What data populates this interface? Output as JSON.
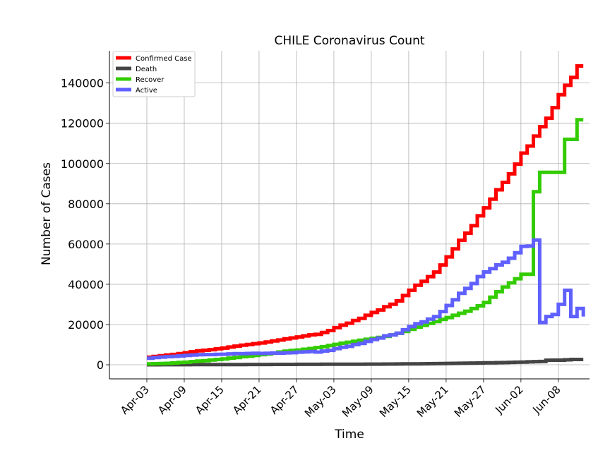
{
  "chart_data": {
    "type": "line",
    "title": "CHILE Coronavirus Count",
    "xlabel": "Time",
    "ylabel": "Number of Cases",
    "x_start": "2020-04-03",
    "xlim": [
      "2020-03-28",
      "2020-06-13"
    ],
    "ylim": [
      -7000,
      156000
    ],
    "grid": true,
    "legend_position": "top-left",
    "x_ticks": [
      {
        "date": "2020-04-03",
        "label": "Apr-03"
      },
      {
        "date": "2020-04-09",
        "label": "Apr-09"
      },
      {
        "date": "2020-04-15",
        "label": "Apr-15"
      },
      {
        "date": "2020-04-21",
        "label": "Apr-21"
      },
      {
        "date": "2020-04-27",
        "label": "Apr-27"
      },
      {
        "date": "2020-05-03",
        "label": "May-03"
      },
      {
        "date": "2020-05-09",
        "label": "May-09"
      },
      {
        "date": "2020-05-15",
        "label": "May-15"
      },
      {
        "date": "2020-05-21",
        "label": "May-21"
      },
      {
        "date": "2020-05-27",
        "label": "May-27"
      },
      {
        "date": "2020-06-02",
        "label": "Jun-02"
      },
      {
        "date": "2020-06-08",
        "label": "Jun-08"
      }
    ],
    "y_ticks": [
      {
        "value": 0,
        "label": "0"
      },
      {
        "value": 20000,
        "label": "20000"
      },
      {
        "value": 40000,
        "label": "40000"
      },
      {
        "value": 60000,
        "label": "60000"
      },
      {
        "value": 80000,
        "label": "80000"
      },
      {
        "value": 100000,
        "label": "100000"
      },
      {
        "value": 120000,
        "label": "120000"
      },
      {
        "value": 140000,
        "label": "140000"
      }
    ],
    "series": [
      {
        "name": "Confirmed Case",
        "color": "#ff0000",
        "step": true,
        "values": [
          3737,
          4161,
          4471,
          4815,
          5116,
          5546,
          5972,
          6501,
          6927,
          7213,
          7525,
          7917,
          8273,
          8807,
          9252,
          9730,
          10088,
          10507,
          10832,
          11296,
          11812,
          12306,
          12858,
          13331,
          13813,
          14365,
          14885,
          15135,
          16023,
          17008,
          18435,
          19663,
          20643,
          22016,
          23048,
          24581,
          25972,
          27219,
          28866,
          30063,
          31721,
          34381,
          37040,
          39542,
          41428,
          43781,
          46059,
          49579,
          53617,
          57581,
          61857,
          65393,
          69102,
          73997,
          77961,
          82289,
          86943,
          90638,
          94858,
          99688,
          105159,
          108686,
          113628,
          118292,
          122499,
          127745,
          134150,
          138846,
          142759,
          148456,
          148456
        ]
      },
      {
        "name": "Death",
        "color": "#444444",
        "step": true,
        "values": [
          22,
          27,
          34,
          37,
          43,
          48,
          57,
          65,
          73,
          82,
          92,
          94,
          105,
          116,
          126,
          133,
          139,
          147,
          160,
          168,
          174,
          181,
          189,
          198,
          207,
          216,
          227,
          234,
          247,
          260,
          270,
          281,
          285,
          294,
          304,
          312,
          323,
          335,
          346,
          368,
          394,
          421,
          450,
          478,
          509,
          528,
          589,
          630,
          673,
          718,
          761,
          806,
          841,
          890,
          944,
          997,
          1054,
          1113,
          1188,
          1275,
          1356,
          1448,
          1541,
          1637,
          2264,
          2290,
          2283,
          2475,
          2648,
          2648,
          2648
        ]
      },
      {
        "name": "Recover",
        "color": "#33cc00",
        "step": true,
        "values": [
          427,
          528,
          619,
          728,
          898,
          1115,
          1274,
          1571,
          1864,
          2059,
          2367,
          2646,
          2937,
          3299,
          3621,
          4035,
          4338,
          4676,
          5063,
          5386,
          5804,
          6327,
          6746,
          7115,
          7327,
          7710,
          8057,
          8580,
          8979,
          9572,
          10144,
          10710,
          11189,
          11676,
          12160,
          12667,
          13112,
          13605,
          14132,
          14865,
          15655,
          16576,
          17624,
          18680,
          19600,
          20553,
          21507,
          22504,
          23477,
          24580,
          25589,
          26621,
          27910,
          29265,
          30915,
          33540,
          36288,
          38598,
          40712,
          42727,
          45000,
          45000,
          86002,
          95637,
          95637,
          95637,
          95637,
          112000,
          112000,
          121723,
          121723
        ]
      },
      {
        "name": "Active",
        "color": "#6060ff",
        "step": true,
        "values": [
          3288,
          3606,
          3818,
          4050,
          4175,
          4383,
          4641,
          4865,
          4990,
          5072,
          5066,
          5177,
          5231,
          5392,
          5505,
          5562,
          5611,
          5684,
          5609,
          5742,
          5834,
          5798,
          5923,
          6018,
          6279,
          6439,
          6601,
          6321,
          6797,
          7176,
          8021,
          8672,
          9169,
          10046,
          10584,
          11602,
          12537,
          13279,
          14388,
          14830,
          15672,
          17384,
          18966,
          20384,
          21319,
          22700,
          23963,
          26445,
          29467,
          32283,
          35507,
          37966,
          40351,
          43842,
          46102,
          47755,
          49601,
          50927,
          52958,
          55686,
          58803,
          59000,
          62000,
          21000,
          24000,
          25000,
          30000,
          37000,
          24000,
          28000,
          24000
        ]
      }
    ]
  }
}
